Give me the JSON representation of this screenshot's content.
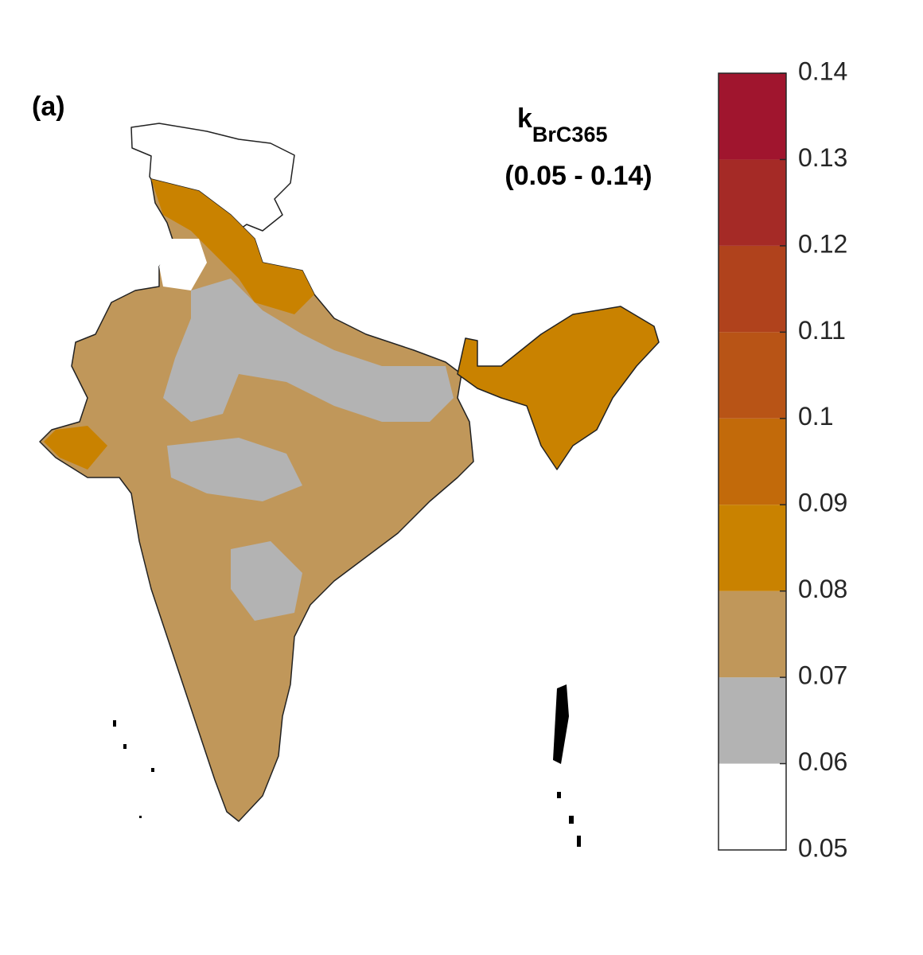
{
  "panel_label": "(a)",
  "title": {
    "main": "k",
    "subscript": "BrC365",
    "range": "(0.05 - 0.14)"
  },
  "colorbar": {
    "ticks": [
      0.05,
      0.06,
      0.07,
      0.08,
      0.09,
      0.1,
      0.11,
      0.12,
      0.13,
      0.14
    ],
    "colors": [
      "#ffffff",
      "#b3b3b3",
      "#c0975a",
      "#c98200",
      "#c26a0a",
      "#b85416",
      "#b0421c",
      "#a52a26",
      "#a0152e"
    ]
  }
}
